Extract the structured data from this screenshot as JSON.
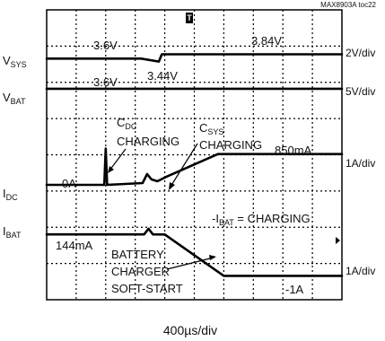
{
  "chart_data": {
    "type": "line",
    "figure_id": "MAX8903A toc22",
    "xlabel": "400µs/div",
    "x_divisions": 10,
    "y_divisions": 8,
    "grid": true,
    "trigger_marker": "T",
    "channels": [
      {
        "name_base": "V",
        "name_sub": "SYS",
        "scale": "2V/div",
        "x": [
          0,
          3.2,
          3.8,
          3.9,
          10
        ],
        "values": [
          3.6,
          3.6,
          3.44,
          3.84,
          3.84
        ],
        "units": "V"
      },
      {
        "name_base": "V",
        "name_sub": "BAT",
        "scale": "5V/div",
        "x": [
          0,
          10
        ],
        "values": [
          3.6,
          3.6
        ],
        "units": "V"
      },
      {
        "name_base": "I",
        "name_sub": "DC",
        "scale": "1A/div",
        "x": [
          0,
          1.95,
          2.0,
          2.05,
          3.25,
          3.4,
          3.55,
          3.75,
          4.05,
          5.8,
          10
        ],
        "values": [
          0,
          0,
          1.0,
          0,
          0.05,
          0.3,
          0.15,
          0.1,
          0.22,
          0.85,
          0.85
        ],
        "units": "A"
      },
      {
        "name_base": "I",
        "name_sub": "BAT",
        "scale": "1A/div",
        "x": [
          0,
          3.3,
          3.45,
          3.6,
          4.0,
          6.0,
          10
        ],
        "values": [
          0.144,
          0.144,
          0.3,
          0.144,
          0.14,
          -1.0,
          -1.0
        ],
        "units": "A"
      }
    ],
    "annotations": {
      "vsys_before": "3.6V",
      "vsys_dip": "3.44V",
      "vsys_after": "3.84V",
      "vbat_level": "3.6V",
      "idc_zero": "0A",
      "idc_final": "850mA",
      "cdc_base": "C",
      "cdc_sub": "DC",
      "cdc_charging": "CHARGING",
      "csys_base": "C",
      "csys_sub": "SYS",
      "csys_charging": "CHARGING",
      "ibat_prefix": "-I",
      "ibat_sub": "BAT",
      "ibat_suffix": " = CHARGING",
      "ibat_initial": "144mA",
      "ibat_final": "-1A",
      "softstart_line1": "BATTERY",
      "softstart_line2": "CHARGER",
      "softstart_line3": "SOFT-START"
    }
  }
}
